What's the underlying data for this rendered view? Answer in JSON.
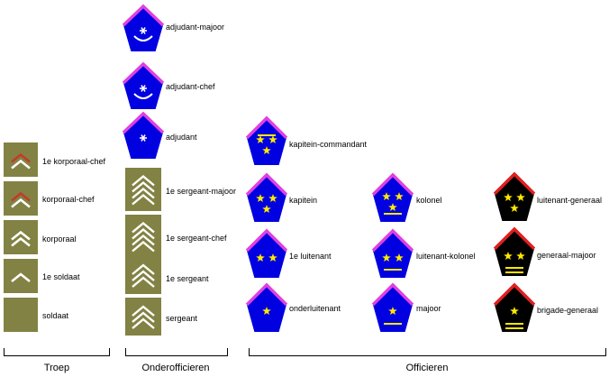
{
  "colors": {
    "background": "#ffffff",
    "troop_patch": "#828244",
    "chevron_white": "#ffffff",
    "chevron_red": "#c43a2a",
    "officer_fill": "#0000e0",
    "officer_border": "#e040e0",
    "general_fill": "#000000",
    "general_border": "#e02020",
    "star": "#ffe800",
    "bar": "#ffe800",
    "bracket": "#000000"
  },
  "groups": {
    "troep": "Troep",
    "onderofficieren": "Onderofficieren",
    "officieren": "Officieren"
  },
  "ranks": {
    "troep": [
      {
        "label": "1e korporaal-chef",
        "chevrons": 2,
        "red_chevrons": 1
      },
      {
        "label": "korporaal-chef",
        "chevrons": 2,
        "red_chevrons": 1
      },
      {
        "label": "korporaal",
        "chevrons": 2,
        "red_chevrons": 0
      },
      {
        "label": "1e soldaat",
        "chevrons": 1,
        "red_chevrons": 0
      },
      {
        "label": "soldaat",
        "chevrons": 0,
        "red_chevrons": 0
      }
    ],
    "onderofficieren_pentagon": [
      {
        "label": "adjudant-majoor",
        "emblem": "star-with-arc"
      },
      {
        "label": "adjudant-chef",
        "emblem": "star-with-arc"
      },
      {
        "label": "adjudant",
        "emblem": "star"
      }
    ],
    "onderofficieren_chevron": [
      {
        "label": "1e sergeant-majoor",
        "chevrons": 4
      },
      {
        "label": "1e sergeant-chef",
        "chevrons": 4
      },
      {
        "label": "1e sergeant",
        "chevrons": 3
      },
      {
        "label": "sergeant",
        "chevrons": 3
      }
    ],
    "officieren_subaltern": [
      {
        "label": "kapitein-commandant",
        "stars": 3,
        "bars": 1
      },
      {
        "label": "kapitein",
        "stars": 3,
        "bars": 0
      },
      {
        "label": "1e luitenant",
        "stars": 2,
        "bars": 0
      },
      {
        "label": "onderluitenant",
        "stars": 1,
        "bars": 0
      }
    ],
    "officieren_hoofd": [
      {
        "label": "kolonel",
        "stars": 3,
        "bars": 1
      },
      {
        "label": "luitenant-kolonel",
        "stars": 2,
        "bars": 1
      },
      {
        "label": "majoor",
        "stars": 1,
        "bars": 1
      }
    ],
    "officieren_generaal": [
      {
        "label": "luitenant-generaal",
        "stars": 3,
        "bars": 0
      },
      {
        "label": "generaal-majoor",
        "stars": 2,
        "bars": 2
      },
      {
        "label": "brigade-generaal",
        "stars": 1,
        "bars": 2
      }
    ]
  }
}
